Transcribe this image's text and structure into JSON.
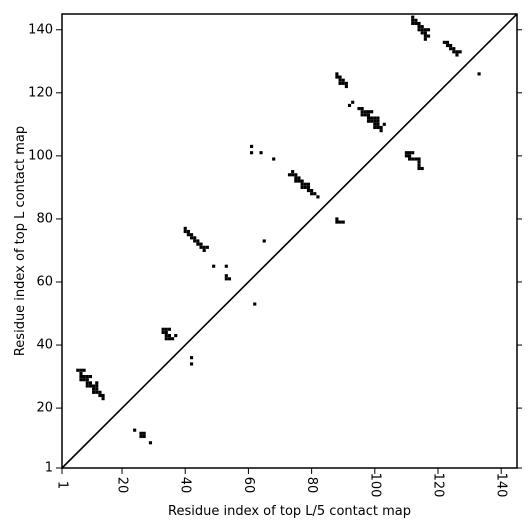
{
  "chart_data": {
    "type": "scatter",
    "xlabel": "Residue index of top L/5 contact map",
    "ylabel": "Residue index of top L contact map",
    "xlim": [
      1,
      145
    ],
    "ylim": [
      1,
      145
    ],
    "xticks": [
      1,
      20,
      40,
      60,
      80,
      100,
      120,
      140
    ],
    "yticks": [
      1,
      20,
      40,
      60,
      80,
      100,
      120,
      140
    ],
    "diagonal": true,
    "marker_color": "#000000",
    "points": [
      [
        6,
        32
      ],
      [
        7,
        32
      ],
      [
        8,
        32
      ],
      [
        7,
        31
      ],
      [
        7,
        30
      ],
      [
        8,
        30
      ],
      [
        9,
        30
      ],
      [
        10,
        30
      ],
      [
        7,
        29
      ],
      [
        8,
        29
      ],
      [
        9,
        29
      ],
      [
        9,
        28
      ],
      [
        10,
        28
      ],
      [
        12,
        28
      ],
      [
        9,
        27
      ],
      [
        10,
        27
      ],
      [
        11,
        27
      ],
      [
        12,
        27
      ],
      [
        11,
        26
      ],
      [
        12,
        26
      ],
      [
        11,
        25
      ],
      [
        12,
        25
      ],
      [
        13,
        25
      ],
      [
        13,
        24
      ],
      [
        14,
        24
      ],
      [
        14,
        23
      ],
      [
        24,
        13
      ],
      [
        26,
        12
      ],
      [
        27,
        12
      ],
      [
        26,
        11
      ],
      [
        27,
        11
      ],
      [
        29,
        9
      ],
      [
        33,
        45
      ],
      [
        34,
        45
      ],
      [
        35,
        45
      ],
      [
        33,
        44
      ],
      [
        34,
        44
      ],
      [
        34,
        43
      ],
      [
        35,
        43
      ],
      [
        37,
        43
      ],
      [
        34,
        42
      ],
      [
        35,
        42
      ],
      [
        36,
        42
      ],
      [
        42,
        36
      ],
      [
        42,
        34
      ],
      [
        40,
        77
      ],
      [
        40,
        76
      ],
      [
        41,
        76
      ],
      [
        41,
        75
      ],
      [
        42,
        75
      ],
      [
        42,
        74
      ],
      [
        43,
        74
      ],
      [
        43,
        73
      ],
      [
        44,
        73
      ],
      [
        44,
        72
      ],
      [
        45,
        72
      ],
      [
        45,
        71
      ],
      [
        46,
        71
      ],
      [
        47,
        71
      ],
      [
        46,
        70
      ],
      [
        49,
        65
      ],
      [
        53,
        65
      ],
      [
        53,
        62
      ],
      [
        53,
        61
      ],
      [
        54,
        61
      ],
      [
        62,
        53
      ],
      [
        61,
        103
      ],
      [
        61,
        101
      ],
      [
        64,
        101
      ],
      [
        65,
        73
      ],
      [
        68,
        99
      ],
      [
        73,
        94
      ],
      [
        74,
        95
      ],
      [
        74,
        94
      ],
      [
        75,
        94
      ],
      [
        75,
        93
      ],
      [
        76,
        93
      ],
      [
        75,
        92
      ],
      [
        76,
        92
      ],
      [
        77,
        92
      ],
      [
        77,
        91
      ],
      [
        78,
        91
      ],
      [
        79,
        91
      ],
      [
        77,
        90
      ],
      [
        78,
        90
      ],
      [
        79,
        90
      ],
      [
        79,
        89
      ],
      [
        80,
        89
      ],
      [
        80,
        88
      ],
      [
        81,
        88
      ],
      [
        82,
        87
      ],
      [
        88,
        80
      ],
      [
        88,
        79
      ],
      [
        89,
        79
      ],
      [
        90,
        79
      ],
      [
        88,
        126
      ],
      [
        88,
        125
      ],
      [
        89,
        125
      ],
      [
        89,
        124
      ],
      [
        90,
        124
      ],
      [
        89,
        123
      ],
      [
        90,
        123
      ],
      [
        91,
        123
      ],
      [
        91,
        122
      ],
      [
        92,
        116
      ],
      [
        93,
        117
      ],
      [
        95,
        115
      ],
      [
        96,
        115
      ],
      [
        96,
        114
      ],
      [
        97,
        114
      ],
      [
        98,
        114
      ],
      [
        99,
        114
      ],
      [
        96,
        113
      ],
      [
        97,
        113
      ],
      [
        98,
        113
      ],
      [
        98,
        112
      ],
      [
        99,
        112
      ],
      [
        100,
        112
      ],
      [
        101,
        112
      ],
      [
        98,
        111
      ],
      [
        99,
        111
      ],
      [
        100,
        111
      ],
      [
        101,
        111
      ],
      [
        100,
        110
      ],
      [
        101,
        110
      ],
      [
        103,
        110
      ],
      [
        100,
        109
      ],
      [
        101,
        109
      ],
      [
        102,
        109
      ],
      [
        102,
        108
      ],
      [
        110,
        101
      ],
      [
        111,
        101
      ],
      [
        112,
        101
      ],
      [
        110,
        100
      ],
      [
        111,
        100
      ],
      [
        111,
        99
      ],
      [
        112,
        99
      ],
      [
        113,
        99
      ],
      [
        114,
        99
      ],
      [
        114,
        98
      ],
      [
        114,
        97
      ],
      [
        114,
        96
      ],
      [
        115,
        96
      ],
      [
        112,
        144
      ],
      [
        112,
        143
      ],
      [
        113,
        143
      ],
      [
        112,
        142
      ],
      [
        113,
        142
      ],
      [
        114,
        142
      ],
      [
        114,
        141
      ],
      [
        115,
        141
      ],
      [
        114,
        140
      ],
      [
        115,
        140
      ],
      [
        116,
        140
      ],
      [
        117,
        140
      ],
      [
        115,
        139
      ],
      [
        116,
        139
      ],
      [
        116,
        138
      ],
      [
        117,
        138
      ],
      [
        116,
        137
      ],
      [
        122,
        136
      ],
      [
        123,
        136
      ],
      [
        123,
        135
      ],
      [
        124,
        135
      ],
      [
        124,
        134
      ],
      [
        125,
        134
      ],
      [
        125,
        133
      ],
      [
        126,
        133
      ],
      [
        127,
        133
      ],
      [
        126,
        132
      ],
      [
        133,
        126
      ]
    ]
  }
}
